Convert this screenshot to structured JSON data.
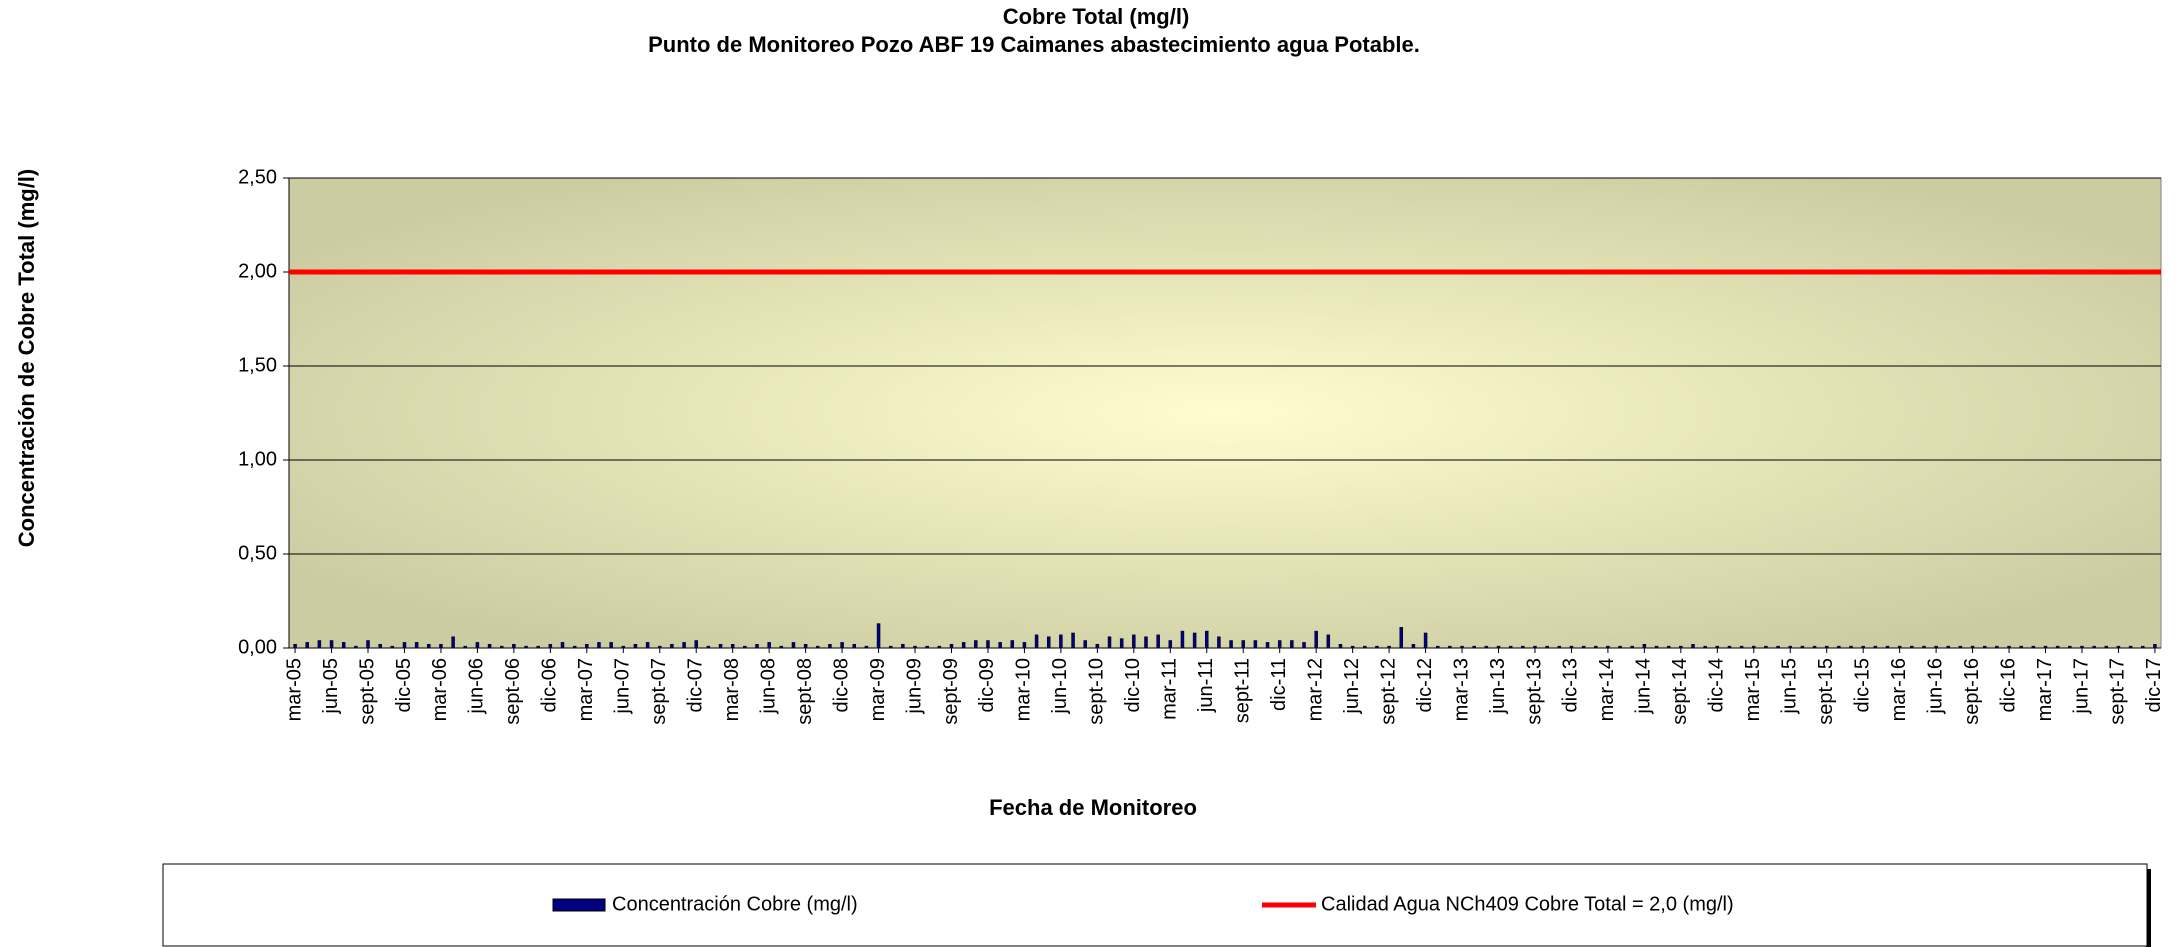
{
  "chart_data": {
    "type": "bar",
    "title": "Cobre Total (mg/l)",
    "subtitle": "Punto de Monitoreo Pozo ABF 19 Caimanes abastecimiento agua Potable.",
    "x_label": "Fecha de Monitoreo",
    "y_label": "Concentración de Cobre Total (mg/l)",
    "categories": [
      "mar-05",
      null,
      null,
      "jun-05",
      null,
      null,
      "sept-05",
      null,
      null,
      "dic-05",
      null,
      null,
      "mar-06",
      null,
      null,
      "jun-06",
      null,
      null,
      "sept-06",
      null,
      null,
      "dic-06",
      null,
      null,
      "mar-07",
      null,
      null,
      "jun-07",
      null,
      null,
      "sept-07",
      null,
      null,
      "dic-07",
      null,
      null,
      "mar-08",
      null,
      null,
      "jun-08",
      null,
      null,
      "sept-08",
      null,
      null,
      "dic-08",
      null,
      null,
      "mar-09",
      null,
      null,
      "jun-09",
      null,
      null,
      "sept-09",
      null,
      null,
      "dic-09",
      null,
      null,
      "mar-10",
      null,
      null,
      "jun-10",
      null,
      null,
      "sept-10",
      null,
      null,
      "dic-10",
      null,
      null,
      "mar-11",
      null,
      null,
      "jun-11",
      null,
      null,
      "sept-11",
      null,
      null,
      "dic-11",
      null,
      null,
      "mar-12",
      null,
      null,
      "jun-12",
      null,
      null,
      "sept-12",
      null,
      null,
      "dic-12",
      null,
      null,
      "mar-13",
      null,
      null,
      "jun-13",
      null,
      null,
      "sept-13",
      null,
      null,
      "dic-13",
      null,
      null,
      "mar-14",
      null,
      null,
      "jun-14",
      null,
      null,
      "sept-14",
      null,
      null,
      "dic-14",
      null,
      null,
      "mar-15",
      null,
      null,
      "jun-15",
      null,
      null,
      "sept-15",
      null,
      null,
      "dic-15",
      null,
      null,
      "mar-16",
      null,
      null,
      "jun-16",
      null,
      null,
      "sept-16",
      null,
      null,
      "dic-16",
      null,
      null,
      "mar-17",
      null,
      null,
      "jun-17",
      null,
      null,
      "sept-17",
      null,
      null,
      "dic-17"
    ],
    "series": [
      {
        "name": "Concentración Cobre (mg/l)",
        "color": "#000080",
        "values": [
          0.02,
          0.03,
          0.04,
          0.04,
          0.03,
          0.01,
          0.04,
          0.02,
          0.01,
          0.03,
          0.03,
          0.02,
          0.02,
          0.06,
          0.01,
          0.03,
          0.02,
          0.01,
          0.02,
          0.01,
          0.01,
          0.02,
          0.03,
          0.01,
          0.02,
          0.03,
          0.03,
          0.01,
          0.02,
          0.03,
          0.01,
          0.02,
          0.03,
          0.04,
          0.01,
          0.02,
          0.02,
          0.01,
          0.02,
          0.03,
          0.01,
          0.03,
          0.02,
          0.01,
          0.02,
          0.03,
          0.02,
          0.01,
          0.13,
          0.01,
          0.02,
          0.01,
          0.01,
          0.01,
          0.02,
          0.03,
          0.04,
          0.04,
          0.03,
          0.04,
          0.03,
          0.07,
          0.06,
          0.07,
          0.08,
          0.04,
          0.02,
          0.06,
          0.05,
          0.07,
          0.06,
          0.07,
          0.04,
          0.09,
          0.08,
          0.09,
          0.06,
          0.04,
          0.04,
          0.04,
          0.03,
          0.04,
          0.04,
          0.03,
          0.09,
          0.07,
          0.02,
          0.01,
          0.01,
          0.01,
          0.01,
          0.11,
          0.02,
          0.08,
          0.01,
          0.01,
          0.01,
          0.01,
          0.01,
          0.01,
          0.01,
          0.01,
          0.01,
          0.01,
          0.01,
          0.01,
          0.01,
          0.01,
          0.01,
          0.01,
          0.01,
          0.02,
          0.01,
          0.01,
          0.01,
          0.02,
          0.01,
          0.01,
          0.01,
          0.01,
          0.01,
          0.01,
          0.01,
          0.01,
          0.01,
          0.01,
          0.01,
          0.01,
          0.01,
          0.01,
          0.01,
          0.01,
          0.01,
          0.01,
          0.01,
          0.01,
          0.01,
          0.01,
          0.01,
          0.01,
          0.01,
          0.01,
          0.01,
          0.01,
          0.01,
          0.01,
          0.01,
          0.01,
          0.01,
          0.01,
          0.01,
          0.01,
          0.01,
          0.02
        ]
      }
    ],
    "reference_line": {
      "name": "Calidad Agua NCh409 Cobre Total = 2,0 (mg/l)",
      "color": "#ff0000",
      "value": 2
    },
    "ylim": [
      0,
      2.5
    ],
    "yticks": [
      {
        "value": 0,
        "label": "0,00"
      },
      {
        "value": 0.5,
        "label": "0,50"
      },
      {
        "value": 1,
        "label": "1,00"
      },
      {
        "value": 1.5,
        "label": "1,50"
      },
      {
        "value": 2,
        "label": "2,00"
      },
      {
        "value": 2.5,
        "label": "2,50"
      }
    ],
    "grid": true,
    "legend": "bottom"
  }
}
